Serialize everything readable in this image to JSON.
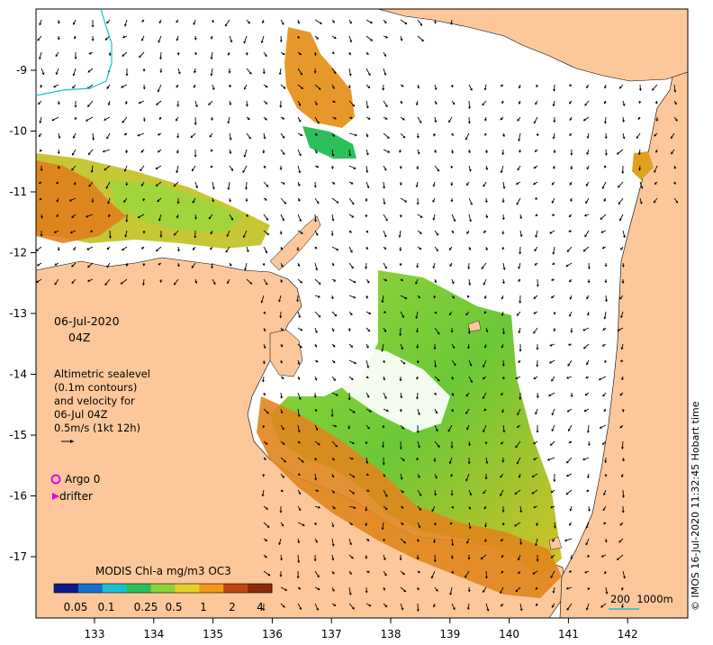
{
  "map": {
    "date": "06-Jul-2020",
    "time": "04Z",
    "info_lines": [
      "Altimetric sealevel",
      "(0.1m contours)",
      "and velocity for",
      "06-Jul 04Z",
      "0.5m/s (1kt 12h)"
    ],
    "legend": {
      "argo_label": "Argo 0",
      "drifter_label": "drifter",
      "argo_color": "#e800e8",
      "drifter_color": "#e800e8"
    },
    "colorbar": {
      "title": "MODIS Chl-a mg/m3 OC3",
      "ticks": [
        "0.05",
        "0.1",
        "0.25",
        "0.5",
        "1",
        "2",
        "4"
      ],
      "colors": [
        "#0a1a8c",
        "#1570d0",
        "#19c0d0",
        "#2bc05a",
        "#8fd23c",
        "#e8d028",
        "#f29a18",
        "#c04510",
        "#8a2a08"
      ]
    },
    "scale_bar_label": "200  1000m",
    "credit": "© IMOS 16-Jul-2020 11:32:45 Hobart time",
    "lon_labels": [
      "133",
      "134",
      "135",
      "136",
      "137",
      "138",
      "139",
      "140",
      "141",
      "142"
    ],
    "lat_labels": [
      "-9",
      "-10",
      "-11",
      "-12",
      "-13",
      "-14",
      "-15",
      "-16",
      "-17"
    ],
    "land_color": "#fcc89b",
    "ocean_color": "#ffffff"
  }
}
